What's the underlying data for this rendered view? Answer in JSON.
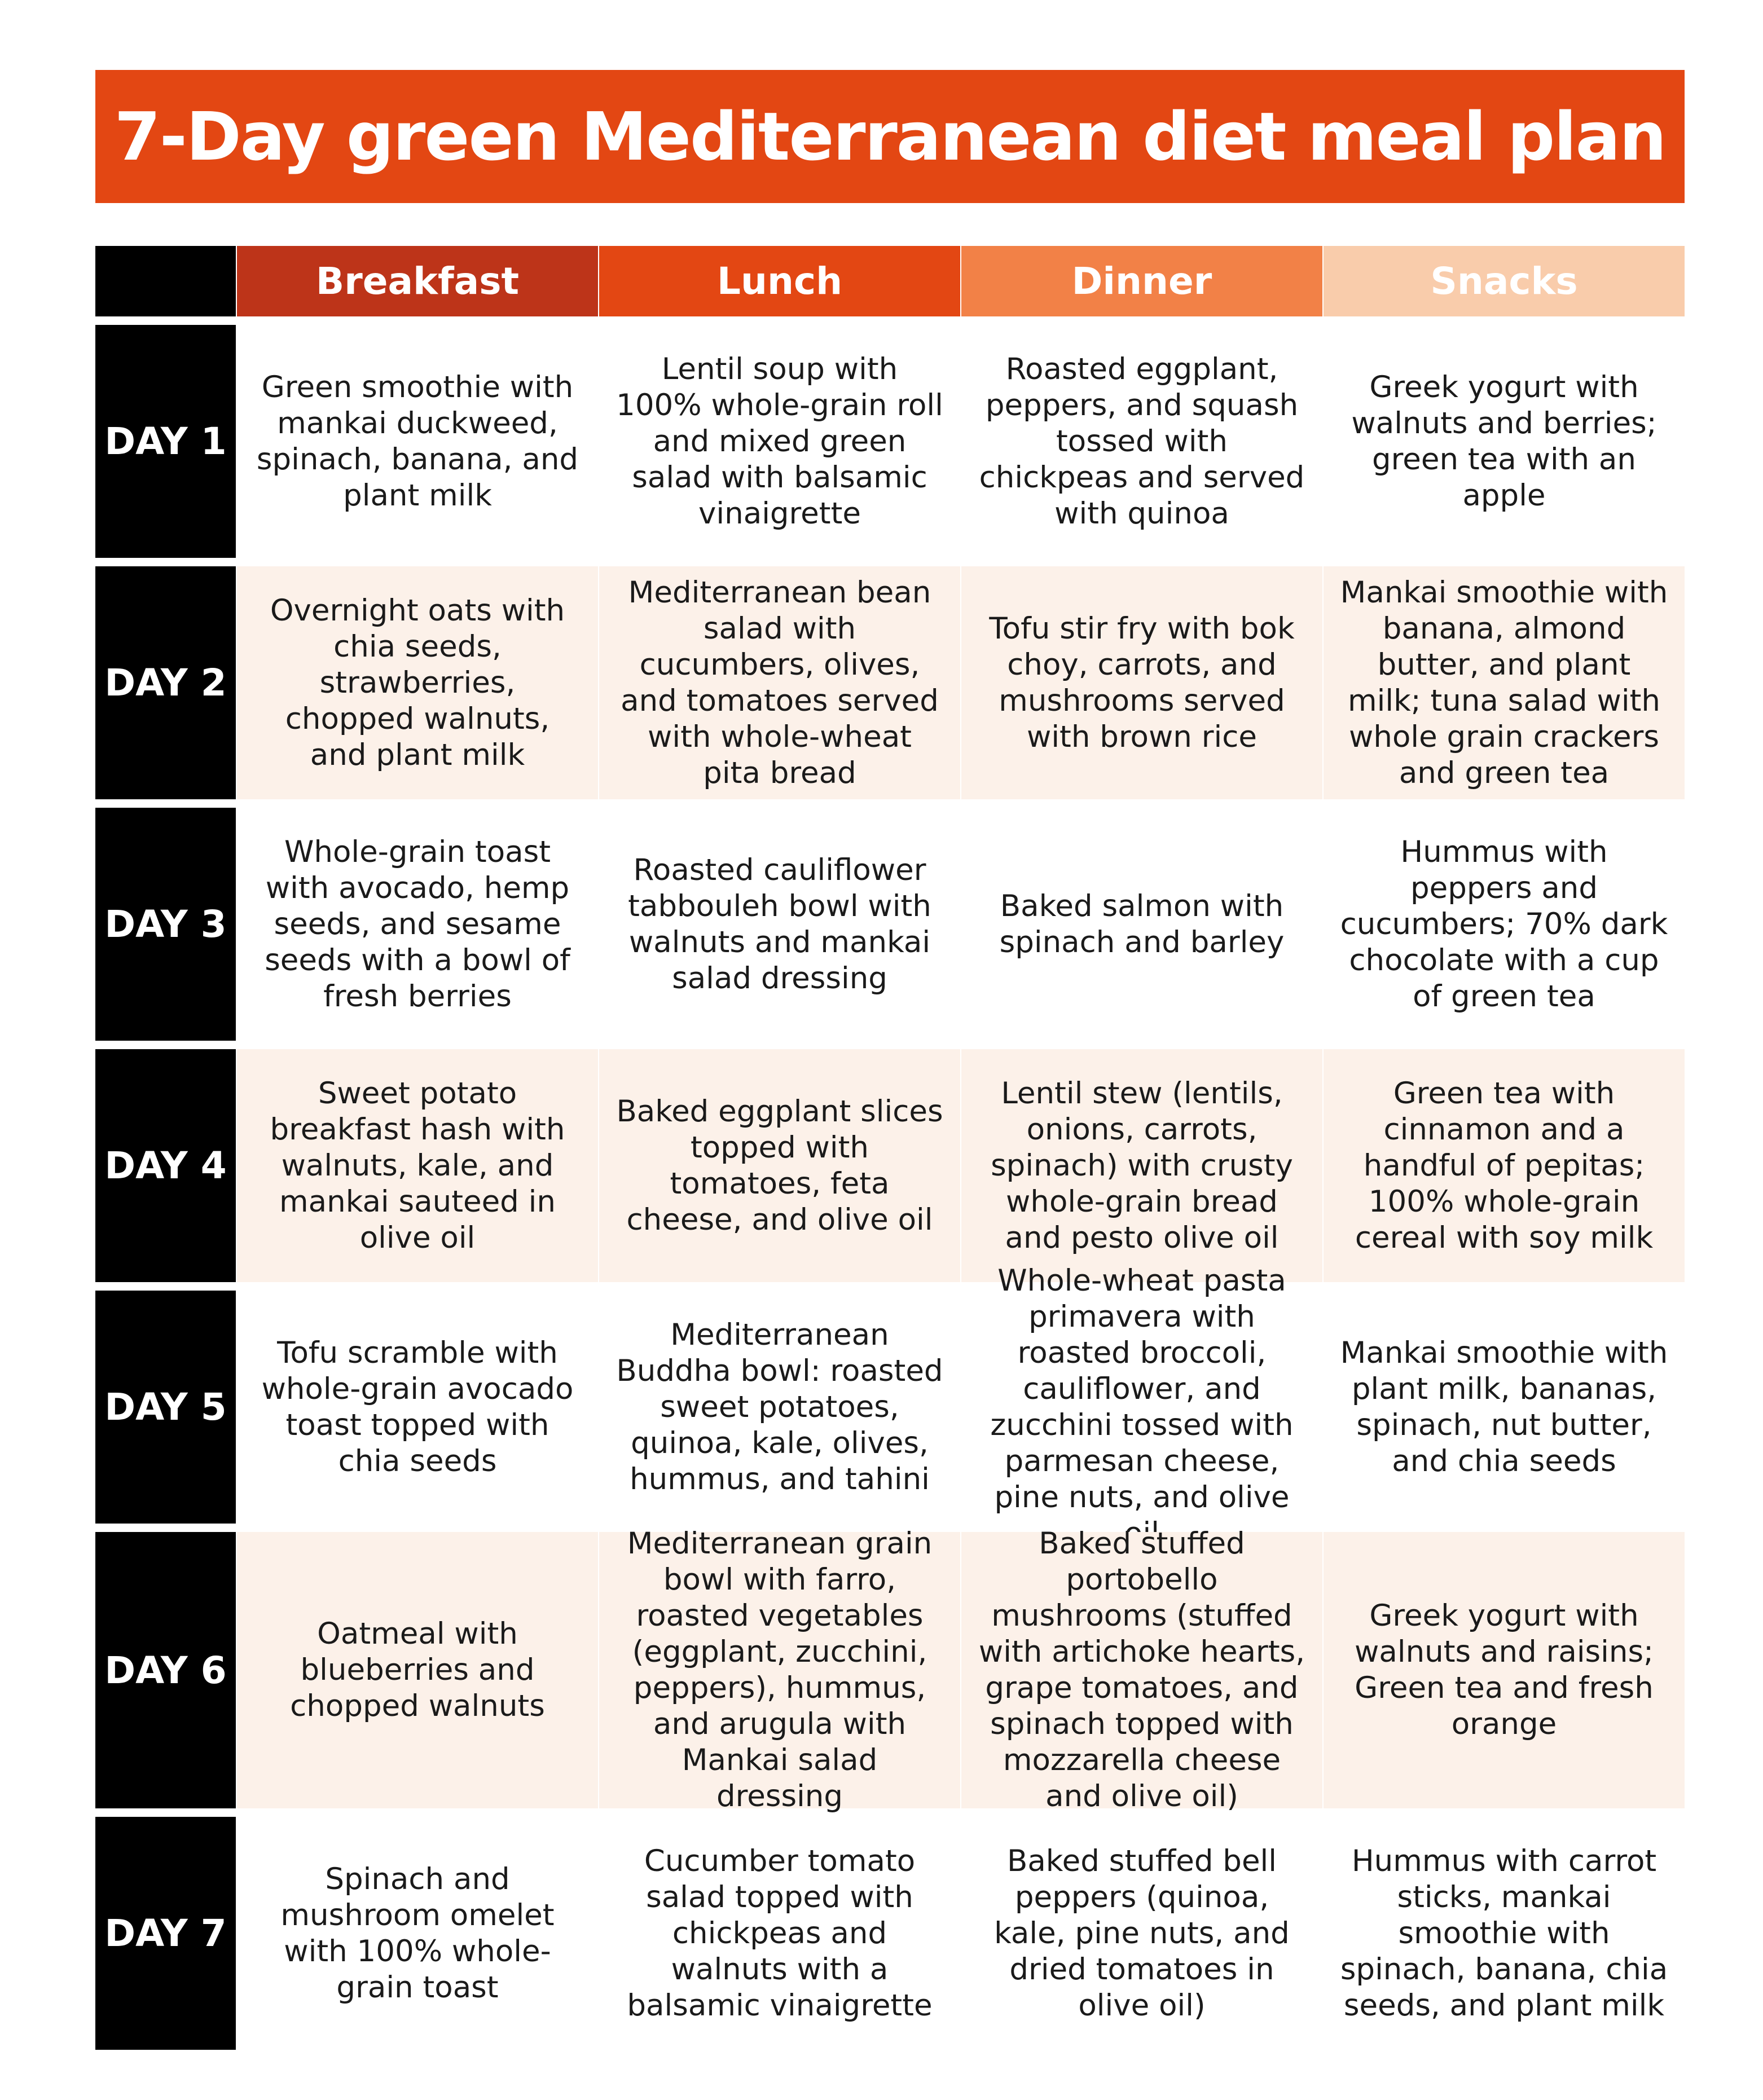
{
  "title": "7-Day green Mediterranean diet meal plan",
  "colors": {
    "title_bg": "#e34713",
    "breakfast_header": "#bd3419",
    "lunch_header": "#e34713",
    "dinner_header": "#f28147",
    "snacks_header": "#f9ccab",
    "day_label_bg": "#000000",
    "shaded_row_bg": "#fcf1e9"
  },
  "columns": [
    "Breakfast",
    "Lunch",
    "Dinner",
    "Snacks"
  ],
  "days": [
    {
      "label": "DAY 1",
      "breakfast": "Green smoothie with mankai duckweed, spinach, banana, and plant milk",
      "lunch": "Lentil soup with 100% whole-grain roll and mixed green salad with balsamic vinaigrette",
      "dinner": "Roasted eggplant, peppers, and squash tossed with chickpeas and served with quinoa",
      "snacks": "Greek yogurt with walnuts and berries; green tea with an apple"
    },
    {
      "label": "DAY 2",
      "breakfast": "Overnight oats with chia seeds, strawberries, chopped walnuts, and plant milk",
      "lunch": "Mediterranean bean salad with cucumbers, olives, and tomatoes served with whole-wheat pita bread",
      "dinner": "Tofu stir fry with bok choy, carrots, and mushrooms served with brown rice",
      "snacks": "Mankai smoothie with banana, almond butter, and plant milk; tuna salad with whole grain crackers and green tea"
    },
    {
      "label": "DAY 3",
      "breakfast": "Whole-grain toast with avocado, hemp seeds, and sesame seeds with a bowl of fresh berries",
      "lunch": "Roasted cauliflower tabbouleh bowl with walnuts and mankai salad dressing",
      "dinner": "Baked salmon with spinach and barley",
      "snacks": "Hummus with peppers and cucumbers; 70% dark chocolate with a cup of green tea"
    },
    {
      "label": "DAY 4",
      "breakfast": "Sweet potato breakfast hash with walnuts, kale, and mankai sauteed in olive oil",
      "lunch": "Baked eggplant slices topped with tomatoes, feta cheese, and olive oil",
      "dinner": "Lentil stew (lentils, onions, carrots, spinach) with crusty whole-grain bread and pesto olive oil",
      "snacks": "Green tea with cinnamon and a handful of pepitas; 100% whole-grain cereal with soy milk"
    },
    {
      "label": "DAY 5",
      "breakfast": "Tofu scramble with whole-grain avocado toast topped with chia seeds",
      "lunch": "Mediterranean Buddha bowl: roasted sweet potatoes, quinoa, kale, olives, hummus, and tahini",
      "dinner": "Whole-wheat pasta primavera with roasted broccoli, cauliflower, and zucchini tossed with parmesan cheese, pine nuts, and olive oil",
      "snacks": "Mankai smoothie with plant milk, bananas, spinach, nut butter, and chia seeds"
    },
    {
      "label": "DAY 6",
      "breakfast": "Oatmeal with blueberries and chopped walnuts",
      "lunch": "Mediterranean grain bowl with farro, roasted vegetables (eggplant, zucchini, peppers), hummus, and arugula with Mankai salad dressing",
      "dinner": "Baked stuffed portobello mushrooms (stuffed with artichoke hearts, grape tomatoes, and spinach topped with mozzarella cheese and olive oil)",
      "snacks": "Greek yogurt with walnuts and raisins; Green tea and fresh orange"
    },
    {
      "label": "DAY 7",
      "breakfast": "Spinach and mushroom omelet with 100% whole-grain toast",
      "lunch": "Cucumber tomato salad topped with chickpeas and walnuts with a balsamic vinaigrette",
      "dinner": "Baked stuffed bell peppers (quinoa, kale, pine nuts, and dried tomatoes in olive oil)",
      "snacks": "Hummus with carrot sticks, mankai smoothie with spinach, banana, chia seeds, and plant milk"
    }
  ]
}
